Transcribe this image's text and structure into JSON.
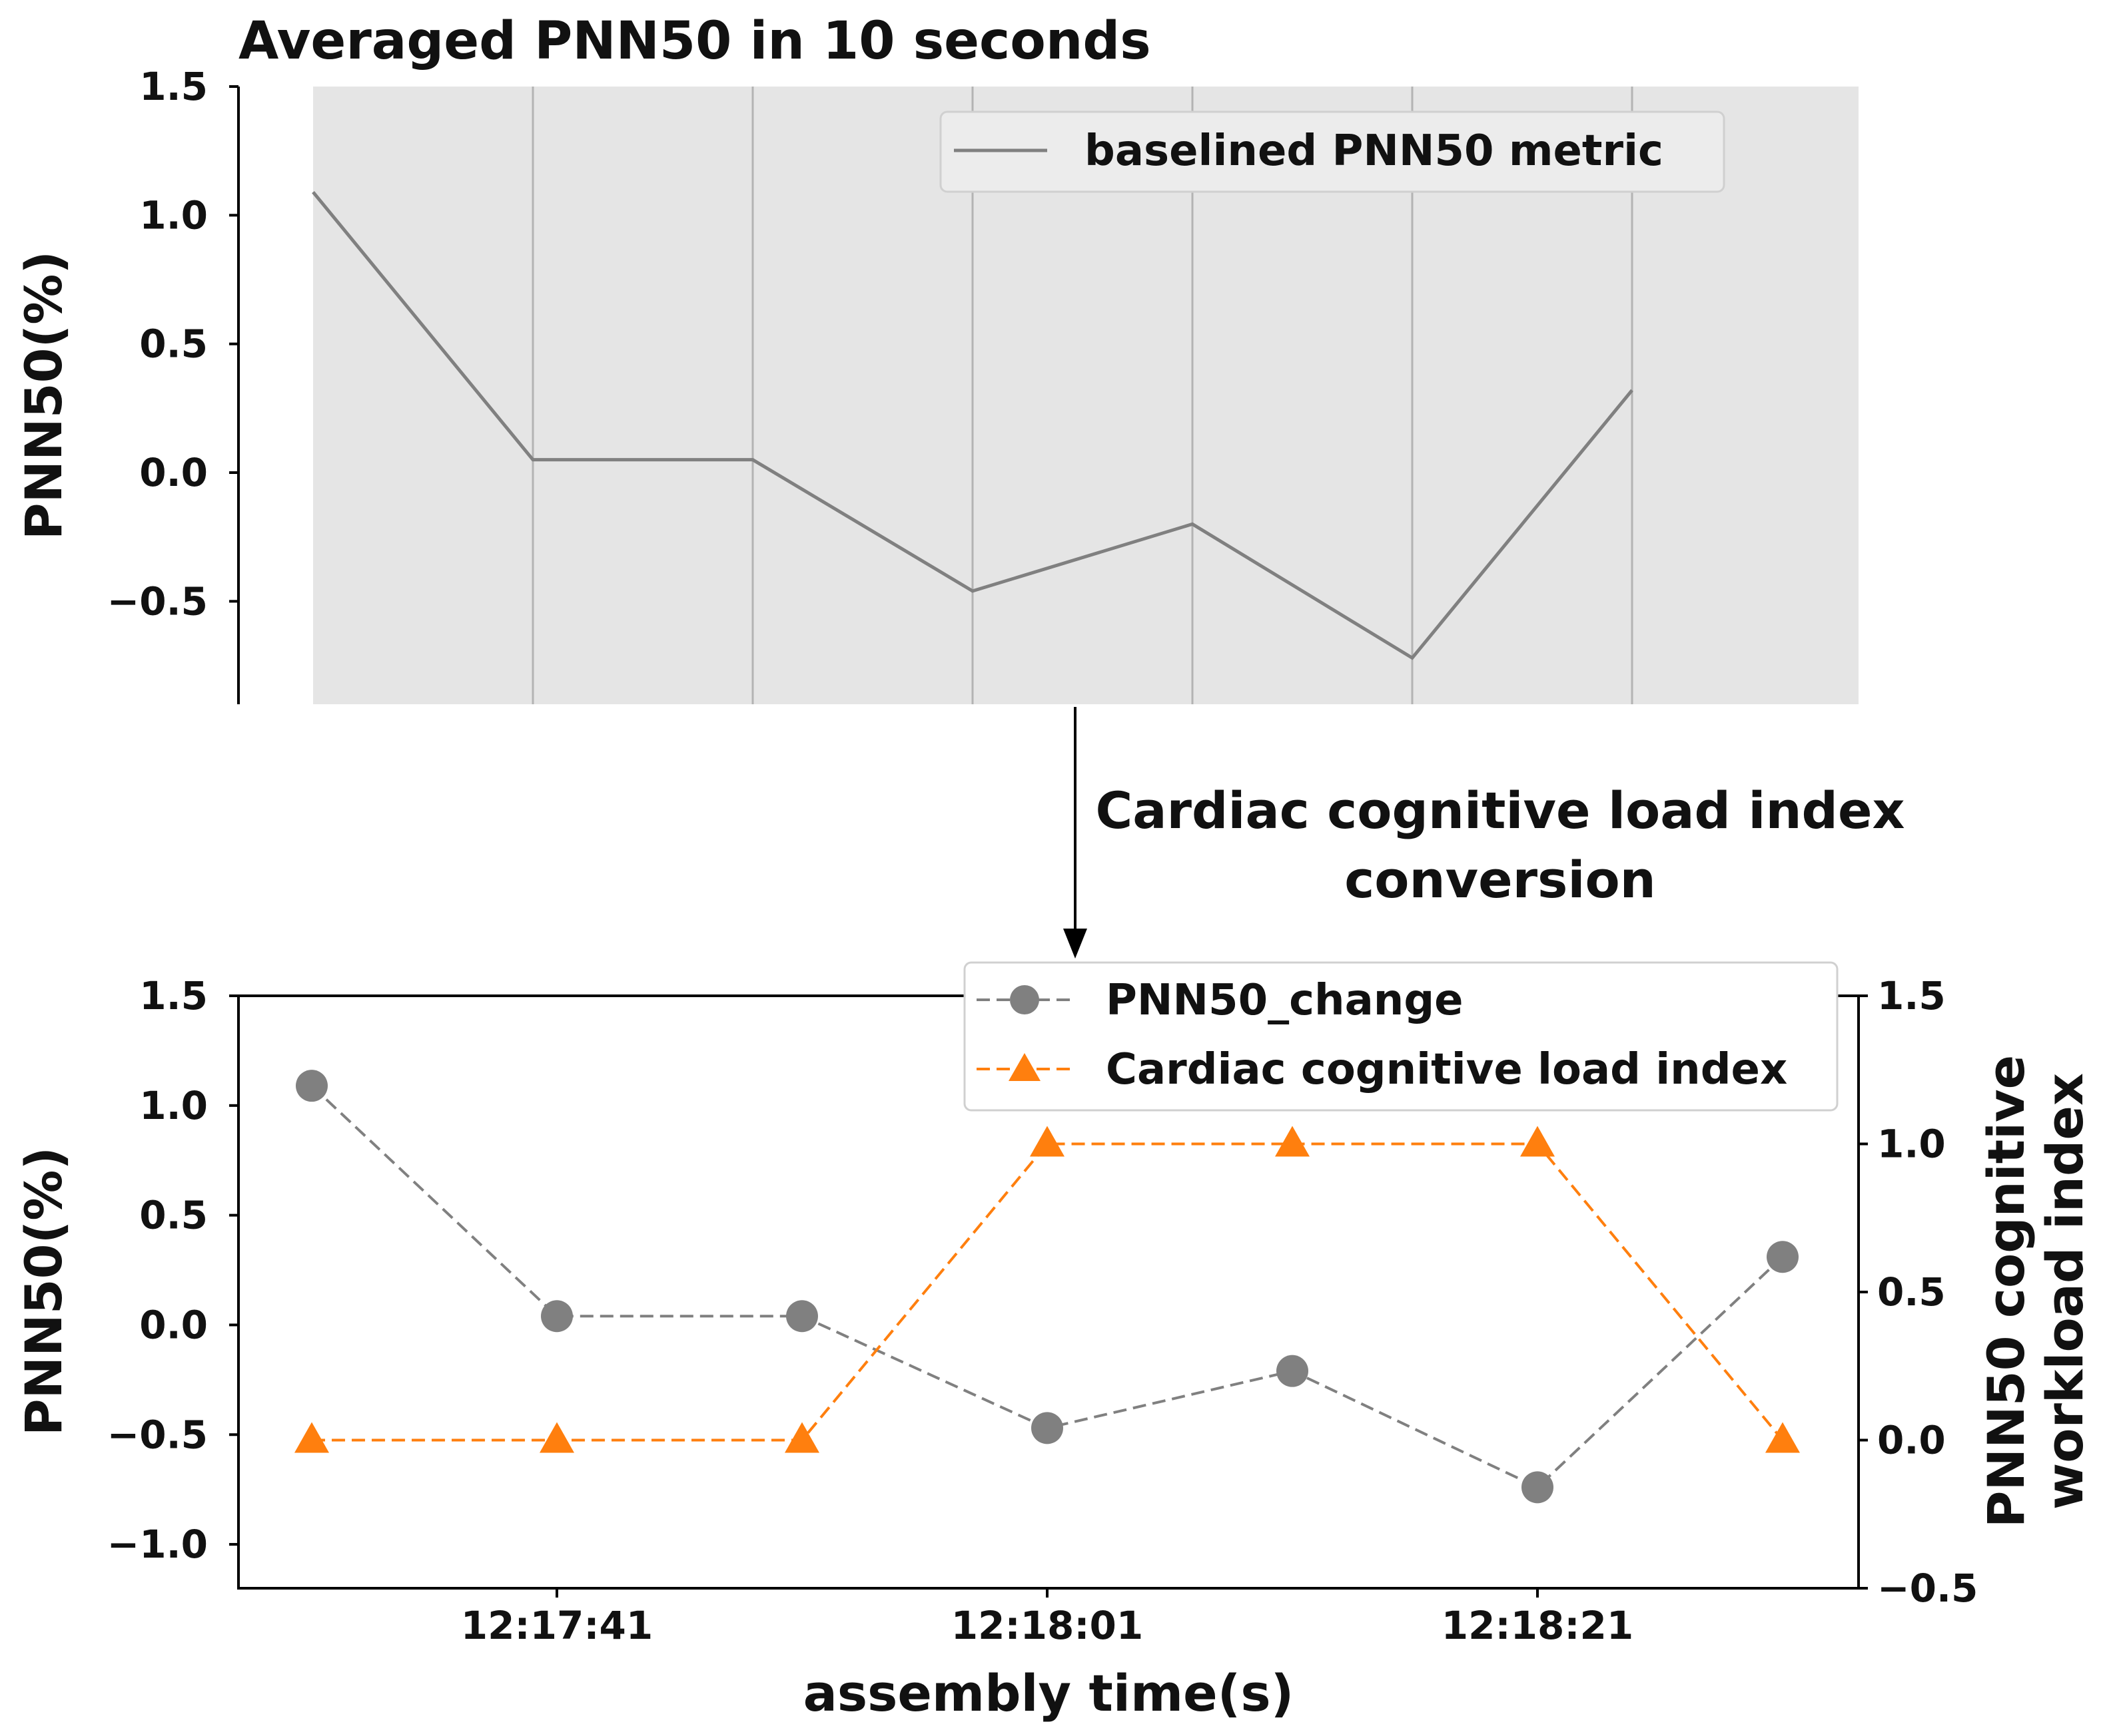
{
  "chart_data": [
    {
      "type": "line",
      "title": "Averaged PNN50 in 10 seconds",
      "ylabel": "PNN50(%)",
      "xlabel": "",
      "ylim": [
        -0.9,
        1.5
      ],
      "yticks": [
        -0.5,
        0.0,
        0.5,
        1.0,
        1.5
      ],
      "ytick_labels": [
        "−0.5",
        "0.0",
        "0.5",
        "1.0",
        "1.5"
      ],
      "grid": "vertical",
      "legend_position": "top-right",
      "series": [
        {
          "name": "baselined PNN50 metric",
          "color": "#808080",
          "x": [
            0,
            1,
            2,
            3,
            4,
            5,
            6
          ],
          "values": [
            1.09,
            0.05,
            0.05,
            -0.46,
            -0.2,
            -0.72,
            0.32
          ]
        }
      ]
    },
    {
      "type": "line",
      "title": "",
      "xlabel": "assembly time(s)",
      "ylabel": "PNN50(%)",
      "ylabel_right": "PNN50 cognitive\nworkload index",
      "ylabel_right_lines": [
        "PNN50 cognitive",
        "workload index"
      ],
      "ylim": [
        -1.2,
        1.5
      ],
      "yticks": [
        -1.0,
        -0.5,
        0.0,
        0.5,
        1.0,
        1.5
      ],
      "ytick_labels": [
        "−1.0",
        "−0.5",
        "0.0",
        "0.5",
        "1.0",
        "1.5"
      ],
      "ylim_right": [
        -0.5,
        1.5
      ],
      "yticks_right": [
        -0.5,
        0.0,
        0.5,
        1.0,
        1.5
      ],
      "ytick_labels_right": [
        "−0.5",
        "0.0",
        "0.5",
        "1.0",
        "1.5"
      ],
      "x": [
        0,
        1,
        2,
        3,
        4,
        5,
        6
      ],
      "xtick_positions": [
        1,
        3,
        5
      ],
      "xtick_labels": [
        "12:17:41",
        "12:18:01",
        "12:18:21"
      ],
      "legend_position": "top-right",
      "series": [
        {
          "name": "PNN50_change",
          "axis": "left",
          "marker": "circle",
          "style": "dashed",
          "color": "#808080",
          "values": [
            1.09,
            0.04,
            0.04,
            -0.47,
            -0.21,
            -0.74,
            0.31
          ]
        },
        {
          "name": "Cardiac cognitive load index",
          "axis": "right",
          "marker": "triangle",
          "style": "dashed",
          "color": "#ff7f0e",
          "values": [
            0,
            0,
            0,
            1,
            1,
            1,
            0
          ]
        }
      ]
    }
  ],
  "annotation": {
    "lines": [
      "Cardiac cognitive load index",
      "conversion"
    ]
  }
}
